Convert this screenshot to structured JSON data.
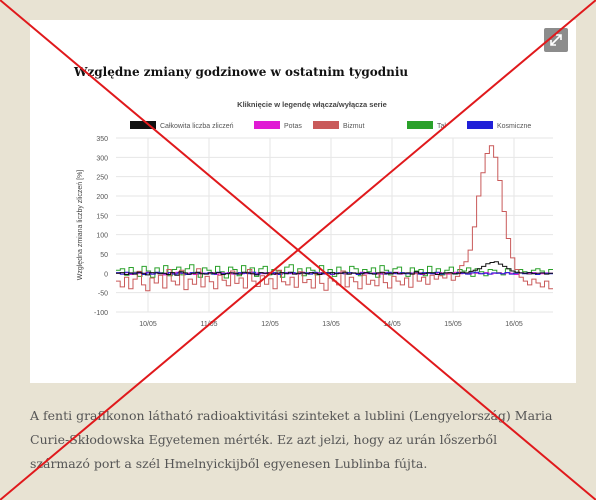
{
  "expand_icon": "expand-arrows-icon",
  "colors": {
    "background": "#e8e3d3",
    "cross": "#e0191c"
  },
  "caption": "A fenti grafikonon látható radioaktivitási szinteket a lublini (Lengyelország) Maria Curie-Skłodowska Egyetemen mérték. Ez azt jelzi, hogy az urán lőszerből származó port a szél Hmelnyickijből egyenesen Lublinba fújta.",
  "chart_data": {
    "type": "line",
    "title": "Względne zmiany godzinowe w ostatnim tygodniu",
    "subtitle": "Kliknięcie w legendę włącza/wyłącza serie",
    "ylabel": "Względna zmiana liczby zliczeń [%]",
    "xlabel": "",
    "ylim": [
      -100,
      350
    ],
    "yticks": [
      "350",
      "300",
      "250",
      "200",
      "150",
      "100",
      "50",
      "0",
      "-50",
      "-100"
    ],
    "xticks": [
      "10/05",
      "11/05",
      "12/05",
      "13/05",
      "14/05",
      "15/05",
      "16/05"
    ],
    "grid": true,
    "legend_position": "top",
    "series": [
      {
        "name": "Całkowita liczba zliczeń",
        "color": "#111111",
        "values": [
          0,
          2,
          -3,
          1,
          -2,
          3,
          0,
          -4,
          2,
          1,
          -1,
          0,
          -3,
          2,
          -5,
          4,
          1,
          -2,
          0,
          3,
          -1,
          -2,
          1,
          0,
          2,
          -3,
          -1,
          1,
          0,
          -2,
          3,
          1,
          -1,
          -4,
          2,
          0,
          1,
          -2,
          0,
          2,
          -1,
          3,
          -2,
          0,
          1,
          -1,
          2,
          0,
          -3,
          1,
          0,
          2,
          -1,
          0,
          3,
          -2,
          1,
          0,
          -1,
          2,
          0,
          -2,
          1,
          3,
          -1,
          0,
          2,
          -1,
          0,
          1,
          -2,
          4,
          0,
          -1,
          2,
          1,
          -3,
          0,
          1,
          2,
          -1,
          0,
          3,
          1,
          5,
          8,
          12,
          18,
          25,
          28,
          30,
          24,
          18,
          12,
          6,
          3,
          1,
          0,
          2,
          -1,
          0,
          1,
          -2,
          0
        ]
      },
      {
        "name": "Potas",
        "color": "#e01ad4",
        "values": [
          0,
          -2,
          2,
          -3,
          1,
          0,
          -1,
          3,
          -2,
          1,
          0,
          -4,
          2,
          -1,
          3,
          0,
          -2,
          1,
          -3,
          2,
          0,
          -1,
          2,
          -3,
          1,
          0,
          2,
          -2,
          1,
          -1,
          0,
          3,
          -2,
          1,
          -1,
          2,
          0,
          -3,
          1,
          2,
          -1,
          0,
          -2,
          3,
          1,
          -1,
          0,
          2,
          -2,
          1,
          -3,
          0,
          2,
          -1,
          1,
          0,
          -2,
          3,
          -1,
          0,
          1,
          -2,
          2,
          0,
          -1,
          3,
          -2,
          0,
          1,
          -1,
          2,
          -3,
          1,
          0,
          -1,
          2,
          0,
          -2,
          1,
          3,
          -1,
          0,
          -2,
          1,
          0,
          -1,
          2,
          -2,
          0,
          1,
          -1,
          2,
          0,
          -3,
          1,
          0,
          -1,
          2,
          0,
          -1,
          1,
          0
        ]
      },
      {
        "name": "Bizmut",
        "color": "#c95a5a",
        "values": [
          -20,
          -35,
          -10,
          -40,
          -15,
          5,
          -30,
          -45,
          -12,
          -25,
          -5,
          -38,
          10,
          -20,
          -30,
          8,
          -42,
          -15,
          -28,
          12,
          -35,
          -8,
          -22,
          -40,
          -5,
          -18,
          -32,
          6,
          -26,
          -12,
          -38,
          10,
          -20,
          -34,
          -6,
          -28,
          -14,
          -40,
          8,
          -22,
          -30,
          -10,
          -36,
          4,
          -24,
          -16,
          -38,
          -2,
          -26,
          -44,
          -12,
          -20,
          -30,
          6,
          -35,
          -10,
          -22,
          -40,
          -5,
          -28,
          -18,
          -32,
          2,
          -24,
          -38,
          -8,
          -20,
          -30,
          -12,
          -36,
          0,
          -20,
          -10,
          -28,
          -5,
          -15,
          -6,
          -12,
          0,
          -18,
          -8,
          20,
          30,
          60,
          120,
          200,
          260,
          310,
          330,
          300,
          240,
          160,
          90,
          40,
          10,
          -10,
          -20,
          -30,
          -15,
          -25,
          -35,
          -20,
          -40
        ]
      },
      {
        "name": "Tal",
        "color": "#2aa12a",
        "values": [
          8,
          12,
          -5,
          15,
          3,
          -8,
          18,
          6,
          -10,
          14,
          2,
          20,
          -6,
          10,
          16,
          -4,
          12,
          22,
          0,
          -10,
          14,
          8,
          -2,
          18,
          4,
          -12,
          16,
          10,
          -6,
          20,
          2,
          14,
          -8,
          12,
          18,
          -4,
          10,
          6,
          -10,
          16,
          22,
          0,
          12,
          -6,
          14,
          8,
          -4,
          20,
          2,
          10,
          -8,
          16,
          6,
          -2,
          18,
          12,
          -6,
          10,
          4,
          14,
          -10,
          20,
          8,
          -4,
          12,
          16,
          0,
          -8,
          14,
          6,
          10,
          -6,
          18,
          2,
          12,
          -4,
          8,
          16,
          -2,
          10,
          6,
          14,
          -8,
          12,
          4,
          -6,
          10,
          8,
          2,
          -4,
          12,
          6,
          0,
          10,
          4,
          -2,
          8,
          12,
          6,
          0,
          10
        ]
      },
      {
        "name": "Kosmiczne",
        "color": "#2020d8",
        "values": [
          2,
          -2,
          3,
          -1,
          0,
          2,
          -3,
          1,
          -2,
          3,
          0,
          -1,
          2,
          -2,
          1,
          0,
          -3,
          2,
          1,
          -1,
          0,
          2,
          -2,
          3,
          -1,
          0,
          1,
          -2,
          2,
          0,
          -1,
          3,
          -2,
          1,
          0,
          -1,
          2,
          -3,
          1,
          0,
          2,
          -1,
          0,
          1,
          -2,
          3,
          0,
          -1,
          2,
          -2,
          1,
          0,
          -1,
          2,
          0,
          -3,
          1,
          2,
          -1,
          0,
          1,
          -2,
          3,
          0,
          -1,
          2,
          -1,
          0,
          1,
          -2,
          2,
          0,
          -1,
          3,
          -2,
          1,
          0,
          -1,
          2,
          0,
          -2,
          1,
          3,
          -1,
          0,
          -2,
          1,
          0,
          -1,
          2,
          -2,
          0,
          1,
          -1,
          2,
          0,
          -3,
          1,
          0,
          -1
        ]
      }
    ]
  }
}
